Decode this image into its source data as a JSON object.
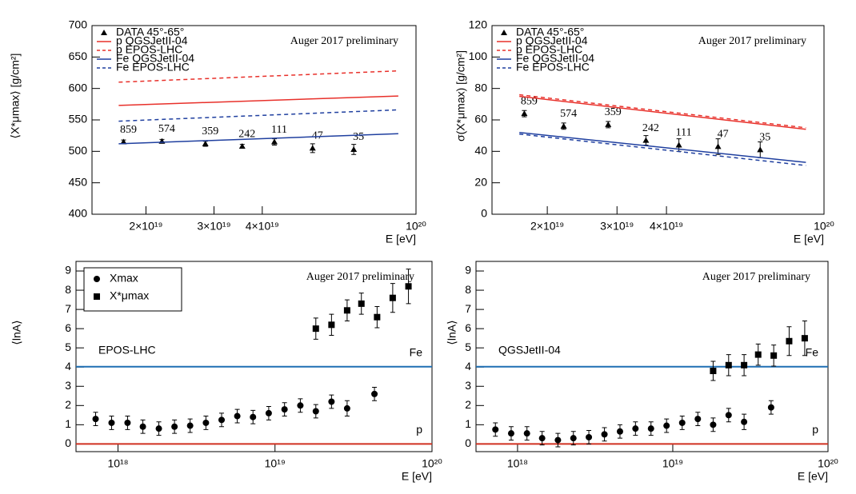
{
  "chart_data": [
    {
      "type": "scatter",
      "ylabel": "⟨X*μmax⟩ [g/cm²]",
      "xlabel": "E [eV]",
      "annotation": "Auger 2017 preliminary",
      "xlog": true,
      "xlim": [
        1.45e+19,
        1e+20
      ],
      "xticks": [
        {
          "value": 2e+19,
          "label": "2×10¹⁹"
        },
        {
          "value": 3e+19,
          "label": "3×10¹⁹"
        },
        {
          "value": 4e+19,
          "label": "4×10¹⁹"
        },
        {
          "value": 1e+20,
          "label": "10²⁰"
        }
      ],
      "ylim": [
        400,
        700
      ],
      "yticks": [
        400,
        450,
        500,
        550,
        600,
        650,
        700
      ],
      "legend": "upper left",
      "series": [
        {
          "name": "DATA 45°-65°",
          "color": "#000000",
          "marker": "triangle",
          "x": [
            1.75e+19,
            2.2e+19,
            2.85e+19,
            3.55e+19,
            4.3e+19,
            5.4e+19,
            6.9e+19
          ],
          "values": [
            515,
            516,
            512,
            508,
            515,
            505,
            503
          ],
          "errors": [
            3,
            3,
            4,
            3,
            5,
            7,
            8
          ],
          "event_counts": [
            859,
            574,
            359,
            242,
            111,
            47,
            35
          ]
        },
        {
          "name": "p QGSJetII-04",
          "color": "#e8302a",
          "line": "solid",
          "x": [
            1.7e+19,
            9e+19
          ],
          "values": [
            573,
            588
          ]
        },
        {
          "name": "p EPOS-LHC",
          "color": "#e8302a",
          "line": "dashed",
          "x": [
            1.7e+19,
            9e+19
          ],
          "values": [
            610,
            628
          ]
        },
        {
          "name": "Fe QGSJetII-04",
          "color": "#1f3f9f",
          "line": "solid",
          "x": [
            1.7e+19,
            9e+19
          ],
          "values": [
            512,
            528
          ]
        },
        {
          "name": "Fe EPOS-LHC",
          "color": "#1f3f9f",
          "line": "dashed",
          "x": [
            1.7e+19,
            9e+19
          ],
          "values": [
            548,
            566
          ]
        }
      ]
    },
    {
      "type": "scatter",
      "ylabel": "σ(X*μmax) [g/cm²]",
      "xlabel": "E [eV]",
      "annotation": "Auger 2017 preliminary",
      "xlog": true,
      "xlim": [
        1.45e+19,
        1e+20
      ],
      "xticks": [
        {
          "value": 2e+19,
          "label": "2×10¹⁹"
        },
        {
          "value": 3e+19,
          "label": "3×10¹⁹"
        },
        {
          "value": 4e+19,
          "label": "4×10¹⁹"
        },
        {
          "value": 1e+20,
          "label": "10²⁰"
        }
      ],
      "ylim": [
        0,
        120
      ],
      "yticks": [
        0,
        20,
        40,
        60,
        80,
        100,
        120
      ],
      "legend": "upper left",
      "series": [
        {
          "name": "DATA 45°-65°",
          "color": "#000000",
          "marker": "triangle",
          "x": [
            1.75e+19,
            2.2e+19,
            2.85e+19,
            3.55e+19,
            4.3e+19,
            5.4e+19,
            6.9e+19
          ],
          "values": [
            64,
            56,
            57,
            47,
            44,
            43,
            41
          ],
          "errors": [
            2,
            2,
            2,
            3,
            4,
            5,
            5
          ],
          "event_counts": [
            859,
            574,
            359,
            242,
            111,
            47,
            35
          ]
        },
        {
          "name": "p QGSJetII-04",
          "color": "#e8302a",
          "line": "solid",
          "x": [
            1.7e+19,
            9e+19
          ],
          "values": [
            75,
            54
          ]
        },
        {
          "name": "p EPOS-LHC",
          "color": "#e8302a",
          "line": "dashed",
          "x": [
            1.7e+19,
            9e+19
          ],
          "values": [
            76,
            55
          ]
        },
        {
          "name": "Fe QGSJetII-04",
          "color": "#1f3f9f",
          "line": "solid",
          "x": [
            1.7e+19,
            9e+19
          ],
          "values": [
            52,
            33
          ]
        },
        {
          "name": "Fe EPOS-LHC",
          "color": "#1f3f9f",
          "line": "dashed",
          "x": [
            1.7e+19,
            9e+19
          ],
          "values": [
            51,
            31
          ]
        }
      ]
    },
    {
      "type": "scatter",
      "ylabel": "⟨lnA⟩",
      "xlabel": "E [eV]",
      "annotation": "Auger 2017 preliminary",
      "model": "EPOS-LHC",
      "xlog": true,
      "xlim": [
        5.4e+17,
        1e+20
      ],
      "xticks": [
        {
          "value": 1e+18,
          "label": "10¹⁸"
        },
        {
          "value": 1e+19,
          "label": "10¹⁹"
        },
        {
          "value": 1e+20,
          "label": "10²⁰"
        }
      ],
      "ylim": [
        -0.4,
        9.5
      ],
      "yticks": [
        0,
        1,
        2,
        3,
        4,
        5,
        6,
        7,
        8,
        9
      ],
      "legend": "upper left",
      "reference_lines": [
        {
          "name": "Fe",
          "value": 4.02,
          "color": "#1f6fb4"
        },
        {
          "name": "p",
          "value": 0,
          "color": "#d03020"
        }
      ],
      "series": [
        {
          "name": "Xmax",
          "color": "#000000",
          "marker": "circle",
          "x": [
            7.2e+17,
            9.1e+17,
            1.15e+18,
            1.44e+18,
            1.82e+18,
            2.29e+18,
            2.88e+18,
            3.63e+18,
            4.57e+18,
            5.75e+18,
            7.24e+18,
            9.12e+18,
            1.15e+19,
            1.45e+19,
            1.82e+19,
            2.29e+19,
            2.88e+19,
            4.3e+19
          ],
          "values": [
            1.3,
            1.1,
            1.1,
            0.9,
            0.8,
            0.9,
            0.95,
            1.1,
            1.25,
            1.45,
            1.4,
            1.6,
            1.8,
            2.0,
            1.7,
            2.2,
            1.85,
            2.6
          ],
          "errors": [
            0.35,
            0.35,
            0.35,
            0.35,
            0.35,
            0.35,
            0.35,
            0.35,
            0.35,
            0.35,
            0.35,
            0.35,
            0.35,
            0.35,
            0.35,
            0.35,
            0.4,
            0.35
          ]
        },
        {
          "name": "X*μmax",
          "color": "#000000",
          "marker": "square",
          "x": [
            1.82e+19,
            2.29e+19,
            2.88e+19,
            3.55e+19,
            4.47e+19,
            5.62e+19,
            7.08e+19
          ],
          "values": [
            6.0,
            6.2,
            6.95,
            7.3,
            6.6,
            7.6,
            8.2
          ],
          "errors": [
            0.55,
            0.55,
            0.55,
            0.55,
            0.55,
            0.75,
            0.9
          ]
        }
      ]
    },
    {
      "type": "scatter",
      "ylabel": "⟨lnA⟩",
      "xlabel": "E [eV]",
      "annotation": "Auger 2017 preliminary",
      "model": "QGSJetII-04",
      "xlog": true,
      "xlim": [
        5.4e+17,
        1e+20
      ],
      "xticks": [
        {
          "value": 1e+18,
          "label": "10¹⁸"
        },
        {
          "value": 1e+19,
          "label": "10¹⁹"
        },
        {
          "value": 1e+20,
          "label": "10²⁰"
        }
      ],
      "ylim": [
        -0.4,
        9.5
      ],
      "yticks": [
        0,
        1,
        2,
        3,
        4,
        5,
        6,
        7,
        8,
        9
      ],
      "reference_lines": [
        {
          "name": "Fe",
          "value": 4.02,
          "color": "#1f6fb4"
        },
        {
          "name": "p",
          "value": 0,
          "color": "#d03020"
        }
      ],
      "series": [
        {
          "color": "#000000",
          "marker": "circle",
          "x": [
            7.2e+17,
            9.1e+17,
            1.15e+18,
            1.44e+18,
            1.82e+18,
            2.29e+18,
            2.88e+18,
            3.63e+18,
            4.57e+18,
            5.75e+18,
            7.24e+18,
            9.12e+18,
            1.15e+19,
            1.45e+19,
            1.82e+19,
            2.29e+19,
            2.88e+19,
            4.3e+19
          ],
          "values": [
            0.75,
            0.55,
            0.55,
            0.3,
            0.2,
            0.3,
            0.35,
            0.5,
            0.65,
            0.8,
            0.8,
            0.95,
            1.1,
            1.3,
            1.0,
            1.5,
            1.15,
            1.9
          ],
          "errors": [
            0.35,
            0.35,
            0.35,
            0.35,
            0.35,
            0.35,
            0.35,
            0.35,
            0.35,
            0.35,
            0.35,
            0.35,
            0.35,
            0.35,
            0.35,
            0.35,
            0.4,
            0.35
          ]
        },
        {
          "color": "#000000",
          "marker": "square",
          "x": [
            1.82e+19,
            2.29e+19,
            2.88e+19,
            3.55e+19,
            4.47e+19,
            5.62e+19,
            7.08e+19
          ],
          "values": [
            3.8,
            4.1,
            4.1,
            4.65,
            4.6,
            5.35,
            5.5
          ],
          "errors": [
            0.5,
            0.55,
            0.55,
            0.55,
            0.55,
            0.75,
            0.9
          ]
        }
      ]
    }
  ]
}
